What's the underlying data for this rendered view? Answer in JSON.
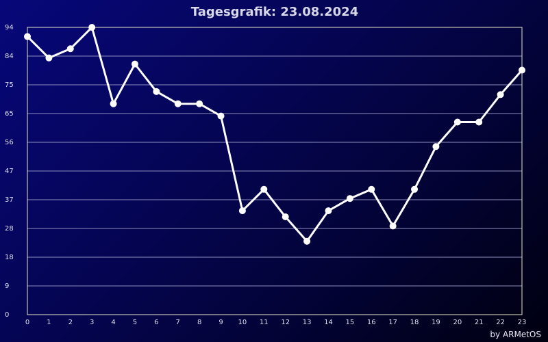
{
  "chart_data": {
    "type": "line",
    "title": "Tagesgrafik: 23.08.2024",
    "xlabel": "",
    "ylabel": "",
    "x": [
      0,
      1,
      2,
      3,
      4,
      5,
      6,
      7,
      8,
      9,
      10,
      11,
      12,
      13,
      14,
      15,
      16,
      17,
      18,
      19,
      20,
      21,
      22,
      23
    ],
    "series": [
      {
        "values": [
          91,
          84,
          87,
          94,
          69,
          82,
          73,
          69,
          69,
          65,
          34,
          41,
          32,
          24,
          34,
          38,
          41,
          29,
          41,
          55,
          63,
          63,
          72,
          80
        ]
      }
    ],
    "yticks": [
      0,
      9,
      18,
      28,
      37,
      47,
      56,
      65,
      75,
      84,
      94
    ],
    "ylim": [
      0,
      94
    ],
    "xlim": [
      0,
      23
    ],
    "grid": true,
    "line_color": "#ffffff",
    "plot_border_color": "#e8e8c8",
    "gridline_color": "#8e8ebd",
    "credit": "by ARMetOS"
  }
}
